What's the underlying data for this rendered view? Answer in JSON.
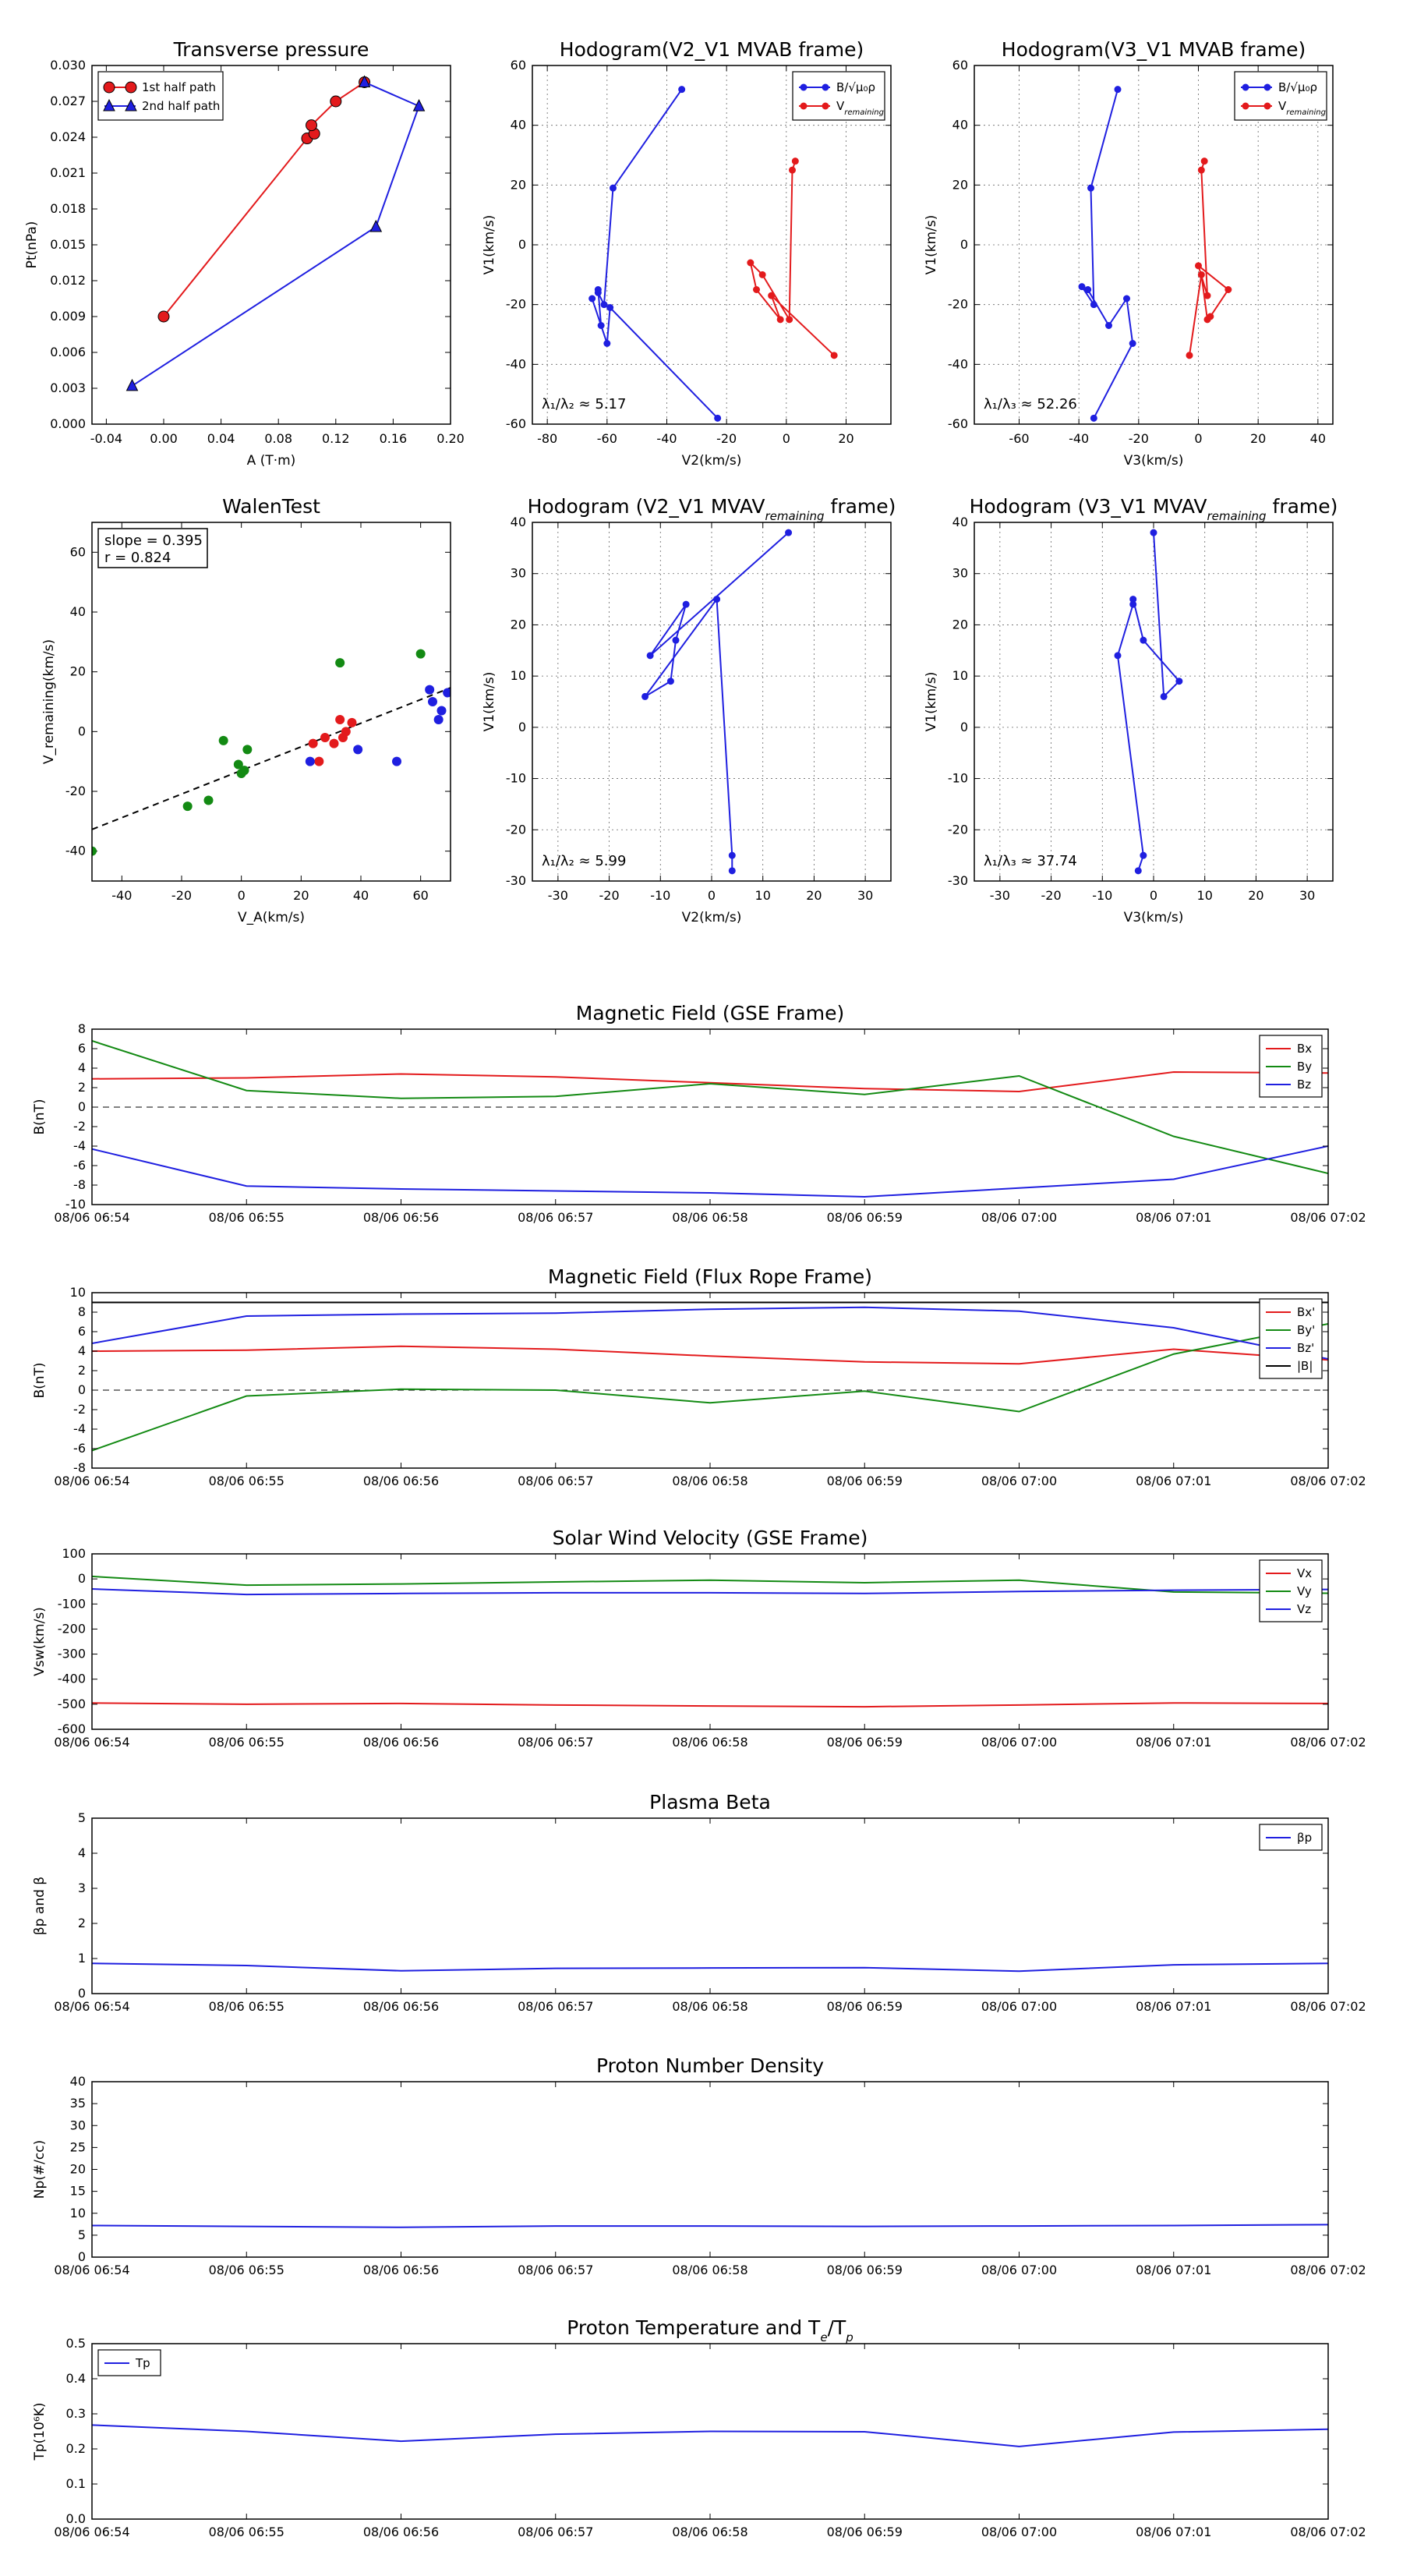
{
  "colors": {
    "red": "#e31a1c",
    "green": "#138a13",
    "blue": "#1f1fe0",
    "black": "#000000"
  },
  "time_ticks": [
    "08/06 06:54",
    "08/06 06:55",
    "08/06 06:56",
    "08/06 06:57",
    "08/06 06:58",
    "08/06 06:59",
    "08/06 07:00",
    "08/06 07:01",
    "08/06 07:02"
  ],
  "chart_data": [
    {
      "id": "tp",
      "type": "line",
      "title": "Transverse pressure",
      "xlabel": "A (T·m)",
      "ylabel": "Pt(nPa)",
      "xlim": [
        -0.05,
        0.2
      ],
      "ylim": [
        0,
        0.03
      ],
      "xticks": [
        "-0.04",
        "0.00",
        "0.04",
        "0.08",
        "0.12",
        "0.16",
        "0.20"
      ],
      "yticks": [
        "0.000",
        "0.003",
        "0.006",
        "0.009",
        "0.012",
        "0.015",
        "0.018",
        "0.021",
        "0.024",
        "0.027",
        "0.030"
      ],
      "legend": "top-left",
      "series": [
        {
          "name": "1st half path",
          "color": "red",
          "marker": "circle",
          "points": [
            [
              0.0,
              0.009
            ],
            [
              0.1,
              0.0239
            ],
            [
              0.105,
              0.0243
            ],
            [
              0.103,
              0.025
            ],
            [
              0.12,
              0.027
            ],
            [
              0.14,
              0.0286
            ]
          ]
        },
        {
          "name": "2nd half path",
          "color": "blue",
          "marker": "triangle",
          "points": [
            [
              0.14,
              0.0286
            ],
            [
              0.178,
              0.0266
            ],
            [
              0.148,
              0.0165
            ],
            [
              -0.022,
              0.0032
            ]
          ]
        }
      ]
    },
    {
      "id": "h1",
      "type": "line",
      "title": "Hodogram(V2_V1 MVAB frame)",
      "xlabel": "V2(km/s)",
      "ylabel": "V1(km/s)",
      "xlim": [
        -85,
        35
      ],
      "ylim": [
        -60,
        60
      ],
      "xticks": [
        "-80",
        "-60",
        "-40",
        "-20",
        "0",
        "20"
      ],
      "yticks": [
        "-60",
        "-40",
        "-20",
        "0",
        "20",
        "40",
        "60"
      ],
      "legend": "top-right",
      "annotation": "λ₁/λ₂ ≈ 5.17",
      "series": [
        {
          "name": "B/√μ₀ρ",
          "color": "blue",
          "points": [
            [
              -35,
              52
            ],
            [
              -58,
              19
            ],
            [
              -61,
              -20
            ],
            [
              -63,
              -16
            ],
            [
              -63,
              -15
            ],
            [
              -62,
              -27
            ],
            [
              -65,
              -18
            ],
            [
              -60,
              -33
            ],
            [
              -59,
              -21
            ],
            [
              -23,
              -58
            ]
          ]
        },
        {
          "name": "V_remaining",
          "color": "red",
          "points": [
            [
              3,
              28
            ],
            [
              2,
              25
            ],
            [
              1,
              -25
            ],
            [
              -8,
              -10
            ],
            [
              -12,
              -6
            ],
            [
              -10,
              -15
            ],
            [
              -2,
              -25
            ],
            [
              -5,
              -17
            ],
            [
              16,
              -37
            ]
          ]
        }
      ]
    },
    {
      "id": "h2",
      "type": "line",
      "title": "Hodogram(V3_V1 MVAB frame)",
      "xlabel": "V3(km/s)",
      "ylabel": "V1(km/s)",
      "xlim": [
        -75,
        45
      ],
      "ylim": [
        -60,
        60
      ],
      "xticks": [
        "-60",
        "-40",
        "-20",
        "0",
        "20",
        "40"
      ],
      "yticks": [
        "-60",
        "-40",
        "-20",
        "0",
        "20",
        "40",
        "60"
      ],
      "legend": "top-right",
      "annotation": "λ₁/λ₃ ≈ 52.26",
      "series": [
        {
          "name": "B/√μ₀ρ",
          "color": "blue",
          "points": [
            [
              -27,
              52
            ],
            [
              -36,
              19
            ],
            [
              -35,
              -20
            ],
            [
              -39,
              -14
            ],
            [
              -37,
              -15
            ],
            [
              -30,
              -27
            ],
            [
              -24,
              -18
            ],
            [
              -22,
              -33
            ],
            [
              -35,
              -58
            ]
          ]
        },
        {
          "name": "V_remaining",
          "color": "red",
          "points": [
            [
              -3,
              -37
            ],
            [
              1,
              -10
            ],
            [
              3,
              -25
            ],
            [
              4,
              -24
            ],
            [
              10,
              -15
            ],
            [
              0,
              -7
            ],
            [
              3,
              -17
            ],
            [
              1,
              25
            ],
            [
              2,
              28
            ]
          ]
        }
      ]
    },
    {
      "id": "walen",
      "type": "scatter",
      "title": "WalenTest",
      "xlabel": "V_A(km/s)",
      "ylabel": "V_remaining(km/s)",
      "xlim": [
        -50,
        70
      ],
      "ylim": [
        -50,
        70
      ],
      "xticks": [
        "-40",
        "-20",
        "0",
        "20",
        "40",
        "60"
      ],
      "yticks": [
        "-40",
        "-20",
        "0",
        "20",
        "40",
        "60"
      ],
      "stats": [
        "slope = 0.395",
        "r = 0.824"
      ],
      "fit": {
        "slope": 0.395,
        "intercept": -13
      },
      "series": [
        {
          "color": "green",
          "points": [
            [
              -50,
              -40
            ],
            [
              -18,
              -25
            ],
            [
              -11,
              -23
            ],
            [
              -6,
              -3
            ],
            [
              -1,
              -11
            ],
            [
              0,
              -14
            ],
            [
              1,
              -13
            ],
            [
              2,
              -6
            ],
            [
              33,
              23
            ],
            [
              60,
              26
            ]
          ]
        },
        {
          "color": "red",
          "points": [
            [
              24,
              -4
            ],
            [
              26,
              -10
            ],
            [
              28,
              -2
            ],
            [
              31,
              -4
            ],
            [
              33,
              4
            ],
            [
              34,
              -2
            ],
            [
              35,
              0
            ],
            [
              37,
              3
            ]
          ]
        },
        {
          "color": "blue",
          "points": [
            [
              23,
              -10
            ],
            [
              39,
              -6
            ],
            [
              52,
              -10
            ],
            [
              63,
              14
            ],
            [
              64,
              10
            ],
            [
              66,
              4
            ],
            [
              67,
              7
            ],
            [
              69,
              13
            ]
          ]
        }
      ]
    },
    {
      "id": "h3",
      "type": "line",
      "title": "Hodogram (V2_V1 MVAV",
      "title_sub": "remaining",
      "title_tail": " frame)",
      "xlabel": "V2(km/s)",
      "ylabel": "V1(km/s)",
      "xlim": [
        -35,
        35
      ],
      "ylim": [
        -30,
        40
      ],
      "xticks": [
        "-30",
        "-20",
        "-10",
        "0",
        "10",
        "20",
        "30"
      ],
      "yticks": [
        "-30",
        "-20",
        "-10",
        "0",
        "10",
        "20",
        "30",
        "40"
      ],
      "annotation": "λ₁/λ₂ ≈ 5.99",
      "series": [
        {
          "color": "blue",
          "points": [
            [
              15,
              38
            ],
            [
              -12,
              14
            ],
            [
              -5,
              24
            ],
            [
              -7,
              17
            ],
            [
              -8,
              9
            ],
            [
              -13,
              6
            ],
            [
              1,
              25
            ],
            [
              4,
              -25
            ],
            [
              4,
              -28
            ]
          ]
        }
      ]
    },
    {
      "id": "h4",
      "type": "line",
      "title": "Hodogram (V3_V1 MVAV",
      "title_sub": "remaining",
      "title_tail": " frame)",
      "xlabel": "V3(km/s)",
      "ylabel": "V1(km/s)",
      "xlim": [
        -35,
        35
      ],
      "ylim": [
        -30,
        40
      ],
      "xticks": [
        "-30",
        "-20",
        "-10",
        "0",
        "10",
        "20",
        "30"
      ],
      "yticks": [
        "-30",
        "-20",
        "-10",
        "0",
        "10",
        "20",
        "30",
        "40"
      ],
      "annotation": "λ₁/λ₃ ≈ 37.74",
      "series": [
        {
          "color": "blue",
          "points": [
            [
              0,
              38
            ],
            [
              2,
              6
            ],
            [
              5,
              9
            ],
            [
              -2,
              17
            ],
            [
              -4,
              25
            ],
            [
              -4,
              24
            ],
            [
              -7,
              14
            ],
            [
              -2,
              -25
            ],
            [
              -3,
              -28
            ]
          ]
        }
      ]
    },
    {
      "id": "bgse",
      "type": "line",
      "title": "Magnetic Field (GSE Frame)",
      "ylabel": "B(nT)",
      "x": [
        0,
        1,
        2,
        3,
        4,
        5,
        6,
        7,
        8
      ],
      "ylim": [
        -10,
        8
      ],
      "yticks": [
        "-10",
        "-8",
        "-6",
        "-4",
        "-2",
        "0",
        "2",
        "4",
        "6",
        "8"
      ],
      "zero_line": true,
      "legend": "top-right",
      "series": [
        {
          "name": "Bx",
          "color": "red",
          "values": [
            2.9,
            3.0,
            3.4,
            3.1,
            2.5,
            1.9,
            1.6,
            3.6,
            3.5
          ]
        },
        {
          "name": "By",
          "color": "green",
          "values": [
            6.8,
            1.7,
            0.9,
            1.1,
            2.4,
            1.3,
            3.2,
            -3.0,
            -6.8
          ]
        },
        {
          "name": "Bz",
          "color": "blue",
          "values": [
            -4.3,
            -8.1,
            -8.4,
            -8.6,
            -8.8,
            -9.2,
            -8.3,
            -7.4,
            -4.0
          ]
        }
      ]
    },
    {
      "id": "bfr",
      "type": "line",
      "title": "Magnetic Field (Flux Rope Frame)",
      "ylabel": "B(nT)",
      "x": [
        0,
        1,
        2,
        3,
        4,
        5,
        6,
        7,
        8
      ],
      "ylim": [
        -8,
        10
      ],
      "yticks": [
        "-8",
        "-6",
        "-4",
        "-2",
        "0",
        "2",
        "4",
        "6",
        "8",
        "10"
      ],
      "zero_line": true,
      "legend": "top-right",
      "series": [
        {
          "name": "Bx'",
          "color": "red",
          "values": [
            4.0,
            4.1,
            4.5,
            4.2,
            3.5,
            2.9,
            2.7,
            4.2,
            3.1
          ]
        },
        {
          "name": "By'",
          "color": "green",
          "values": [
            -6.2,
            -0.6,
            0.1,
            0.0,
            -1.3,
            -0.1,
            -2.2,
            3.7,
            6.8
          ]
        },
        {
          "name": "Bz'",
          "color": "blue",
          "values": [
            4.8,
            7.6,
            7.8,
            7.9,
            8.3,
            8.5,
            8.1,
            6.4,
            3.2
          ]
        },
        {
          "name": "|B|",
          "color": "black",
          "values": [
            9.0,
            9.0,
            9.0,
            9.0,
            9.0,
            9.0,
            9.0,
            9.0,
            9.0
          ]
        }
      ]
    },
    {
      "id": "vsw",
      "type": "line",
      "title": "Solar Wind Velocity (GSE Frame)",
      "ylabel": "Vsw(km/s)",
      "x": [
        0,
        1,
        2,
        3,
        4,
        5,
        6,
        7,
        8
      ],
      "ylim": [
        -600,
        100
      ],
      "yticks": [
        "-600",
        "-500",
        "-400",
        "-300",
        "-200",
        "-100",
        "0",
        "100"
      ],
      "legend": "top-right",
      "series": [
        {
          "name": "Vx",
          "color": "red",
          "values": [
            -495,
            -500,
            -497,
            -503,
            -507,
            -510,
            -503,
            -495,
            -497
          ]
        },
        {
          "name": "Vy",
          "color": "green",
          "values": [
            10,
            -25,
            -20,
            -12,
            -5,
            -15,
            -5,
            -52,
            -57
          ]
        },
        {
          "name": "Vz",
          "color": "blue",
          "values": [
            -40,
            -62,
            -58,
            -55,
            -55,
            -58,
            -50,
            -45,
            -42
          ]
        }
      ]
    },
    {
      "id": "beta",
      "type": "line",
      "title": "Plasma Beta",
      "ylabel": "βp and β",
      "x": [
        0,
        1,
        2,
        3,
        4,
        5,
        6,
        7,
        8
      ],
      "ylim": [
        0,
        5
      ],
      "yticks": [
        "0",
        "1",
        "2",
        "3",
        "4",
        "5"
      ],
      "legend": "top-right",
      "series": [
        {
          "name": "βp",
          "color": "blue",
          "values": [
            0.86,
            0.8,
            0.65,
            0.72,
            0.73,
            0.74,
            0.64,
            0.82,
            0.86
          ]
        }
      ]
    },
    {
      "id": "np",
      "type": "line",
      "title": "Proton Number Density",
      "ylabel": "Np(#/cc)",
      "x": [
        0,
        1,
        2,
        3,
        4,
        5,
        6,
        7,
        8
      ],
      "ylim": [
        0,
        40
      ],
      "yticks": [
        "0",
        "5",
        "10",
        "15",
        "20",
        "25",
        "30",
        "35",
        "40"
      ],
      "series": [
        {
          "name": "Np",
          "color": "blue",
          "values": [
            7.2,
            7.0,
            6.8,
            7.1,
            7.1,
            7.0,
            7.1,
            7.2,
            7.4
          ]
        }
      ]
    },
    {
      "id": "tpr",
      "type": "line",
      "title": "Proton Temperature and T",
      "title_sub": "e",
      "title_tail": "/T",
      "title_sub2": "p",
      "ylabel": "Tp(10⁶K)",
      "x": [
        0,
        1,
        2,
        3,
        4,
        5,
        6,
        7,
        8
      ],
      "ylim": [
        0,
        0.5
      ],
      "yticks": [
        "0.0",
        "0.1",
        "0.2",
        "0.3",
        "0.4",
        "0.5"
      ],
      "legend": "top-left",
      "series": [
        {
          "name": "Tp",
          "color": "blue",
          "values": [
            0.268,
            0.25,
            0.222,
            0.242,
            0.25,
            0.249,
            0.207,
            0.248,
            0.256
          ]
        }
      ]
    }
  ]
}
